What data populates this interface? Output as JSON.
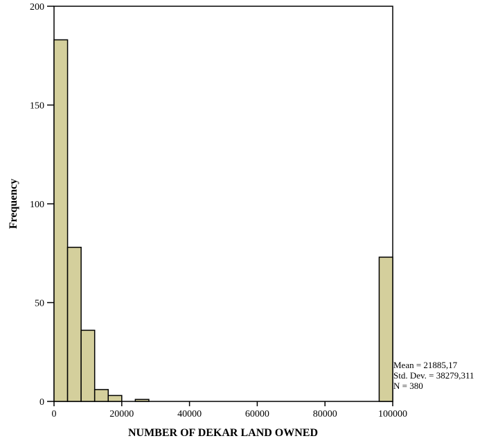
{
  "chart_data": {
    "type": "histogram",
    "title": "",
    "xlabel": "NUMBER OF DEKAR LAND OWNED",
    "ylabel": "Frequency",
    "xlim": [
      0,
      100000
    ],
    "ylim": [
      0,
      200
    ],
    "bin_width": 4000,
    "x_ticks": [
      0,
      20000,
      40000,
      60000,
      80000,
      100000
    ],
    "y_ticks": [
      0,
      50,
      100,
      150,
      200
    ],
    "bins": [
      {
        "x0": 0,
        "x1": 4000,
        "count": 183
      },
      {
        "x0": 4000,
        "x1": 8000,
        "count": 78
      },
      {
        "x0": 8000,
        "x1": 12000,
        "count": 36
      },
      {
        "x0": 12000,
        "x1": 16000,
        "count": 6
      },
      {
        "x0": 16000,
        "x1": 20000,
        "count": 3
      },
      {
        "x0": 24000,
        "x1": 28000,
        "count": 1
      },
      {
        "x0": 96000,
        "x1": 100000,
        "count": 73
      }
    ],
    "bar_color": "#d4cf9c",
    "grid": false,
    "stats": {
      "mean": "Mean = 21885,17",
      "std": "Std. Dev. = 38279,311",
      "n": "N = 380"
    }
  }
}
